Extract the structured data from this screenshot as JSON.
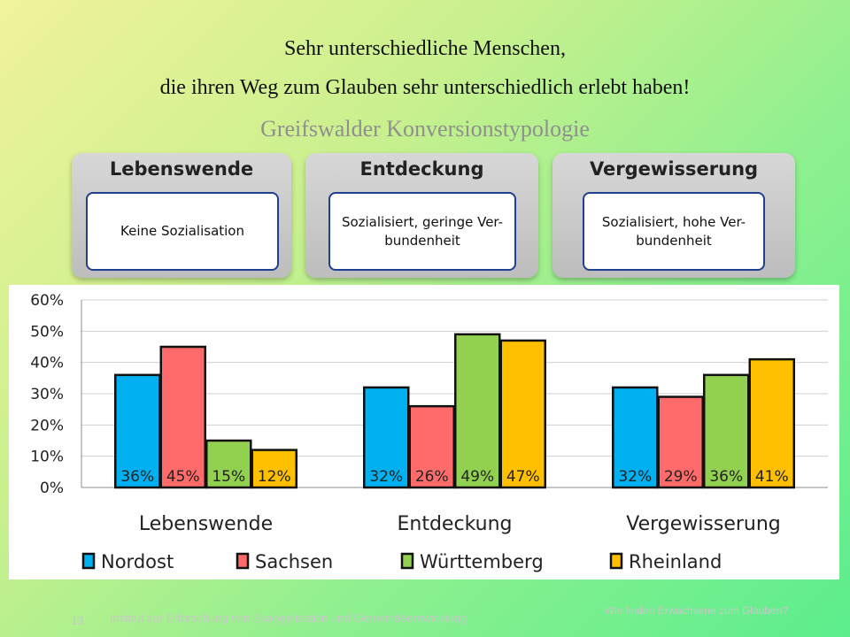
{
  "slide": {
    "title_line1": "Sehr unterschiedliche Menschen,",
    "title_line2": "die ihren Weg zum Glauben sehr unterschiedlich erlebt haben!",
    "subtitle": "Greifswalder Konversionstypologie"
  },
  "cards": [
    {
      "title": "Lebenswende",
      "text": "Keine Sozialisation"
    },
    {
      "title": "Entdeckung",
      "text": "Sozialisiert, geringe Ver-bundenheit"
    },
    {
      "title": "Vergewisserung",
      "text": "Sozialisiert, hohe Ver-bundenheit"
    }
  ],
  "chart_data": {
    "type": "bar",
    "categories": [
      "Lebenswende",
      "Entdeckung",
      "Vergewisserung"
    ],
    "series": [
      {
        "name": "Nordost",
        "values": [
          36,
          32,
          32
        ]
      },
      {
        "name": "Sachsen",
        "values": [
          45,
          26,
          29
        ]
      },
      {
        "name": "Württemberg",
        "values": [
          15,
          49,
          36
        ]
      },
      {
        "name": "Rheinland",
        "values": [
          12,
          47,
          41
        ]
      }
    ],
    "ylim": [
      0,
      60
    ],
    "yticks": [
      "0%",
      "10%",
      "20%",
      "30%",
      "40%",
      "50%",
      "60%"
    ],
    "data_labels": [
      [
        "36%",
        "45%",
        "15%",
        "12%"
      ],
      [
        "32%",
        "26%",
        "49%",
        "47%"
      ],
      [
        "32%",
        "29%",
        "36%",
        "41%"
      ]
    ],
    "legend_position": "bottom",
    "colors": [
      "#00b0f0",
      "#ff6b6b",
      "#92d050",
      "#ffc000"
    ]
  },
  "footer": {
    "page_number": "13",
    "institute": "Institut zur Erforschung von Evangelisation und Gemeindeentwicklung",
    "right_text": "Wie finden Erwachsene zum Glauben?"
  }
}
